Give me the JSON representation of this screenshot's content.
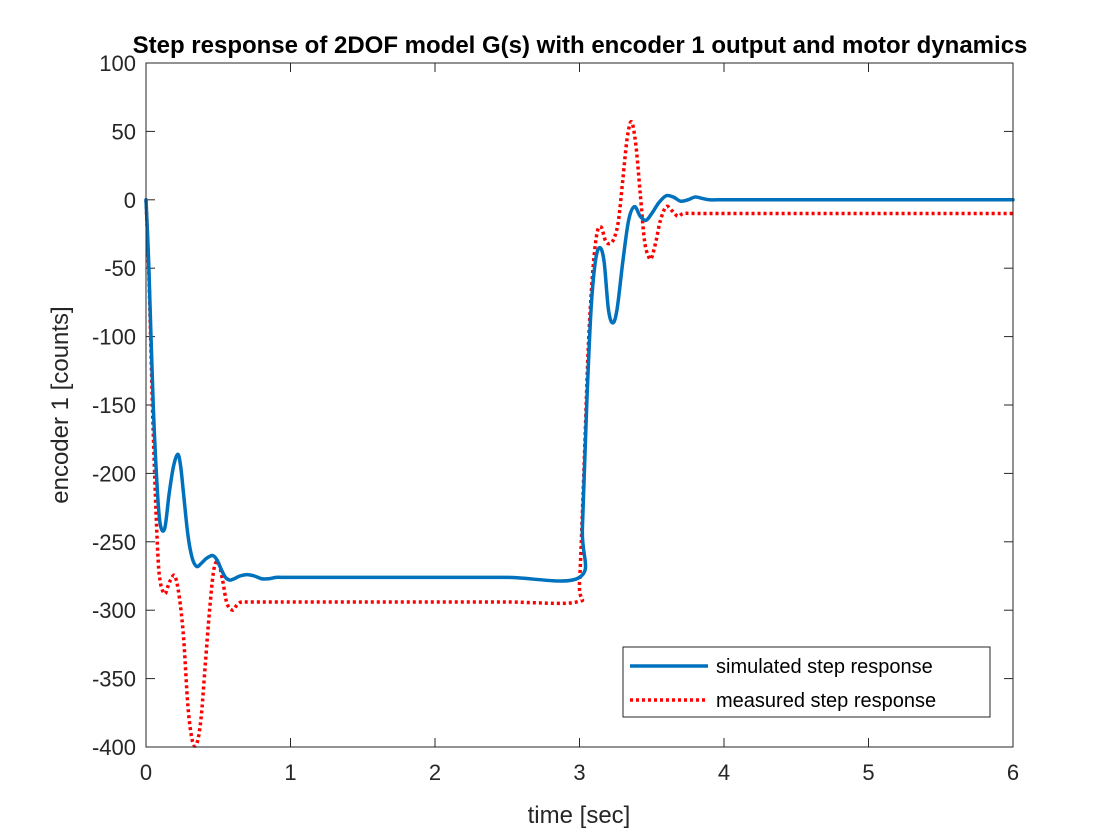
{
  "chart_data": {
    "type": "line",
    "title": "Step response of 2DOF model G(s) with encoder 1 output and motor dynamics",
    "xlabel": "time [sec]",
    "ylabel": "encoder 1 [counts]",
    "xlim": [
      0,
      6
    ],
    "ylim": [
      -400,
      100
    ],
    "xticks": [
      0,
      1,
      2,
      3,
      4,
      5,
      6
    ],
    "xtick_labels": [
      "0",
      "1",
      "2",
      "3",
      "4",
      "5",
      "6"
    ],
    "yticks": [
      100,
      50,
      0,
      -50,
      -100,
      -150,
      -200,
      -250,
      -300,
      -350,
      -400
    ],
    "ytick_labels": [
      "100",
      "50",
      "0",
      "-50",
      "-100",
      "-150",
      "-200",
      "-250",
      "-300",
      "-350",
      "-400"
    ],
    "grid": false,
    "legend_position": "bottom-right",
    "series": [
      {
        "name": "simulated step response",
        "color": "#0072bd",
        "style": "solid",
        "x": [
          0,
          0.02,
          0.05,
          0.08,
          0.1,
          0.13,
          0.16,
          0.19,
          0.22,
          0.24,
          0.26,
          0.29,
          0.32,
          0.35,
          0.38,
          0.42,
          0.46,
          0.49,
          0.52,
          0.55,
          0.58,
          0.61,
          0.65,
          0.7,
          0.75,
          0.8,
          0.85,
          0.9,
          0.95,
          1.0,
          1.1,
          1.3,
          1.5,
          2.0,
          2.5,
          3.0,
          3.02,
          3.05,
          3.08,
          3.11,
          3.14,
          3.17,
          3.2,
          3.23,
          3.26,
          3.3,
          3.34,
          3.38,
          3.42,
          3.46,
          3.5,
          3.55,
          3.6,
          3.65,
          3.7,
          3.75,
          3.8,
          3.85,
          3.9,
          3.95,
          4.0,
          4.1,
          4.3,
          4.6,
          5.0,
          5.5,
          6.0
        ],
        "y": [
          0,
          -50,
          -150,
          -215,
          -238,
          -240,
          -215,
          -195,
          -186,
          -195,
          -215,
          -245,
          -262,
          -268,
          -266,
          -262,
          -260,
          -263,
          -270,
          -276,
          -278,
          -277,
          -275,
          -274,
          -275,
          -277,
          -277,
          -276,
          -276,
          -276,
          -276,
          -276,
          -276,
          -276,
          -276,
          -276,
          -240,
          -150,
          -80,
          -45,
          -35,
          -45,
          -80,
          -90,
          -80,
          -45,
          -15,
          -5,
          -12,
          -15,
          -10,
          -2,
          3,
          2,
          -1,
          0,
          2,
          1,
          0,
          0,
          0,
          0,
          0,
          0,
          0,
          0,
          0
        ]
      },
      {
        "name": "measured step response",
        "color": "#ff0000",
        "style": "dotted",
        "x": [
          0,
          0.02,
          0.05,
          0.08,
          0.1,
          0.13,
          0.15,
          0.17,
          0.2,
          0.23,
          0.26,
          0.29,
          0.32,
          0.35,
          0.38,
          0.41,
          0.44,
          0.47,
          0.5,
          0.53,
          0.56,
          0.6,
          0.63,
          0.66,
          0.7,
          0.8,
          0.9,
          1.0,
          1.5,
          2.0,
          2.5,
          2.98,
          3.0,
          3.03,
          3.06,
          3.09,
          3.12,
          3.15,
          3.18,
          3.21,
          3.24,
          3.27,
          3.3,
          3.33,
          3.36,
          3.39,
          3.42,
          3.45,
          3.48,
          3.5,
          3.53,
          3.56,
          3.6,
          3.64,
          3.68,
          3.72,
          3.8,
          4.0,
          4.5,
          5.0,
          5.5,
          6.0
        ],
        "y": [
          0,
          -55,
          -170,
          -255,
          -280,
          -288,
          -283,
          -278,
          -275,
          -290,
          -320,
          -370,
          -395,
          -398,
          -380,
          -340,
          -300,
          -270,
          -265,
          -278,
          -295,
          -300,
          -296,
          -294,
          -294,
          -294,
          -294,
          -294,
          -294,
          -294,
          -294,
          -294,
          -280,
          -200,
          -110,
          -55,
          -25,
          -20,
          -30,
          -32,
          -28,
          -15,
          15,
          45,
          57,
          40,
          5,
          -30,
          -42,
          -42,
          -30,
          -15,
          -5,
          -8,
          -12,
          -10,
          -10,
          -10,
          -10,
          -10,
          -10,
          -10
        ]
      }
    ]
  }
}
